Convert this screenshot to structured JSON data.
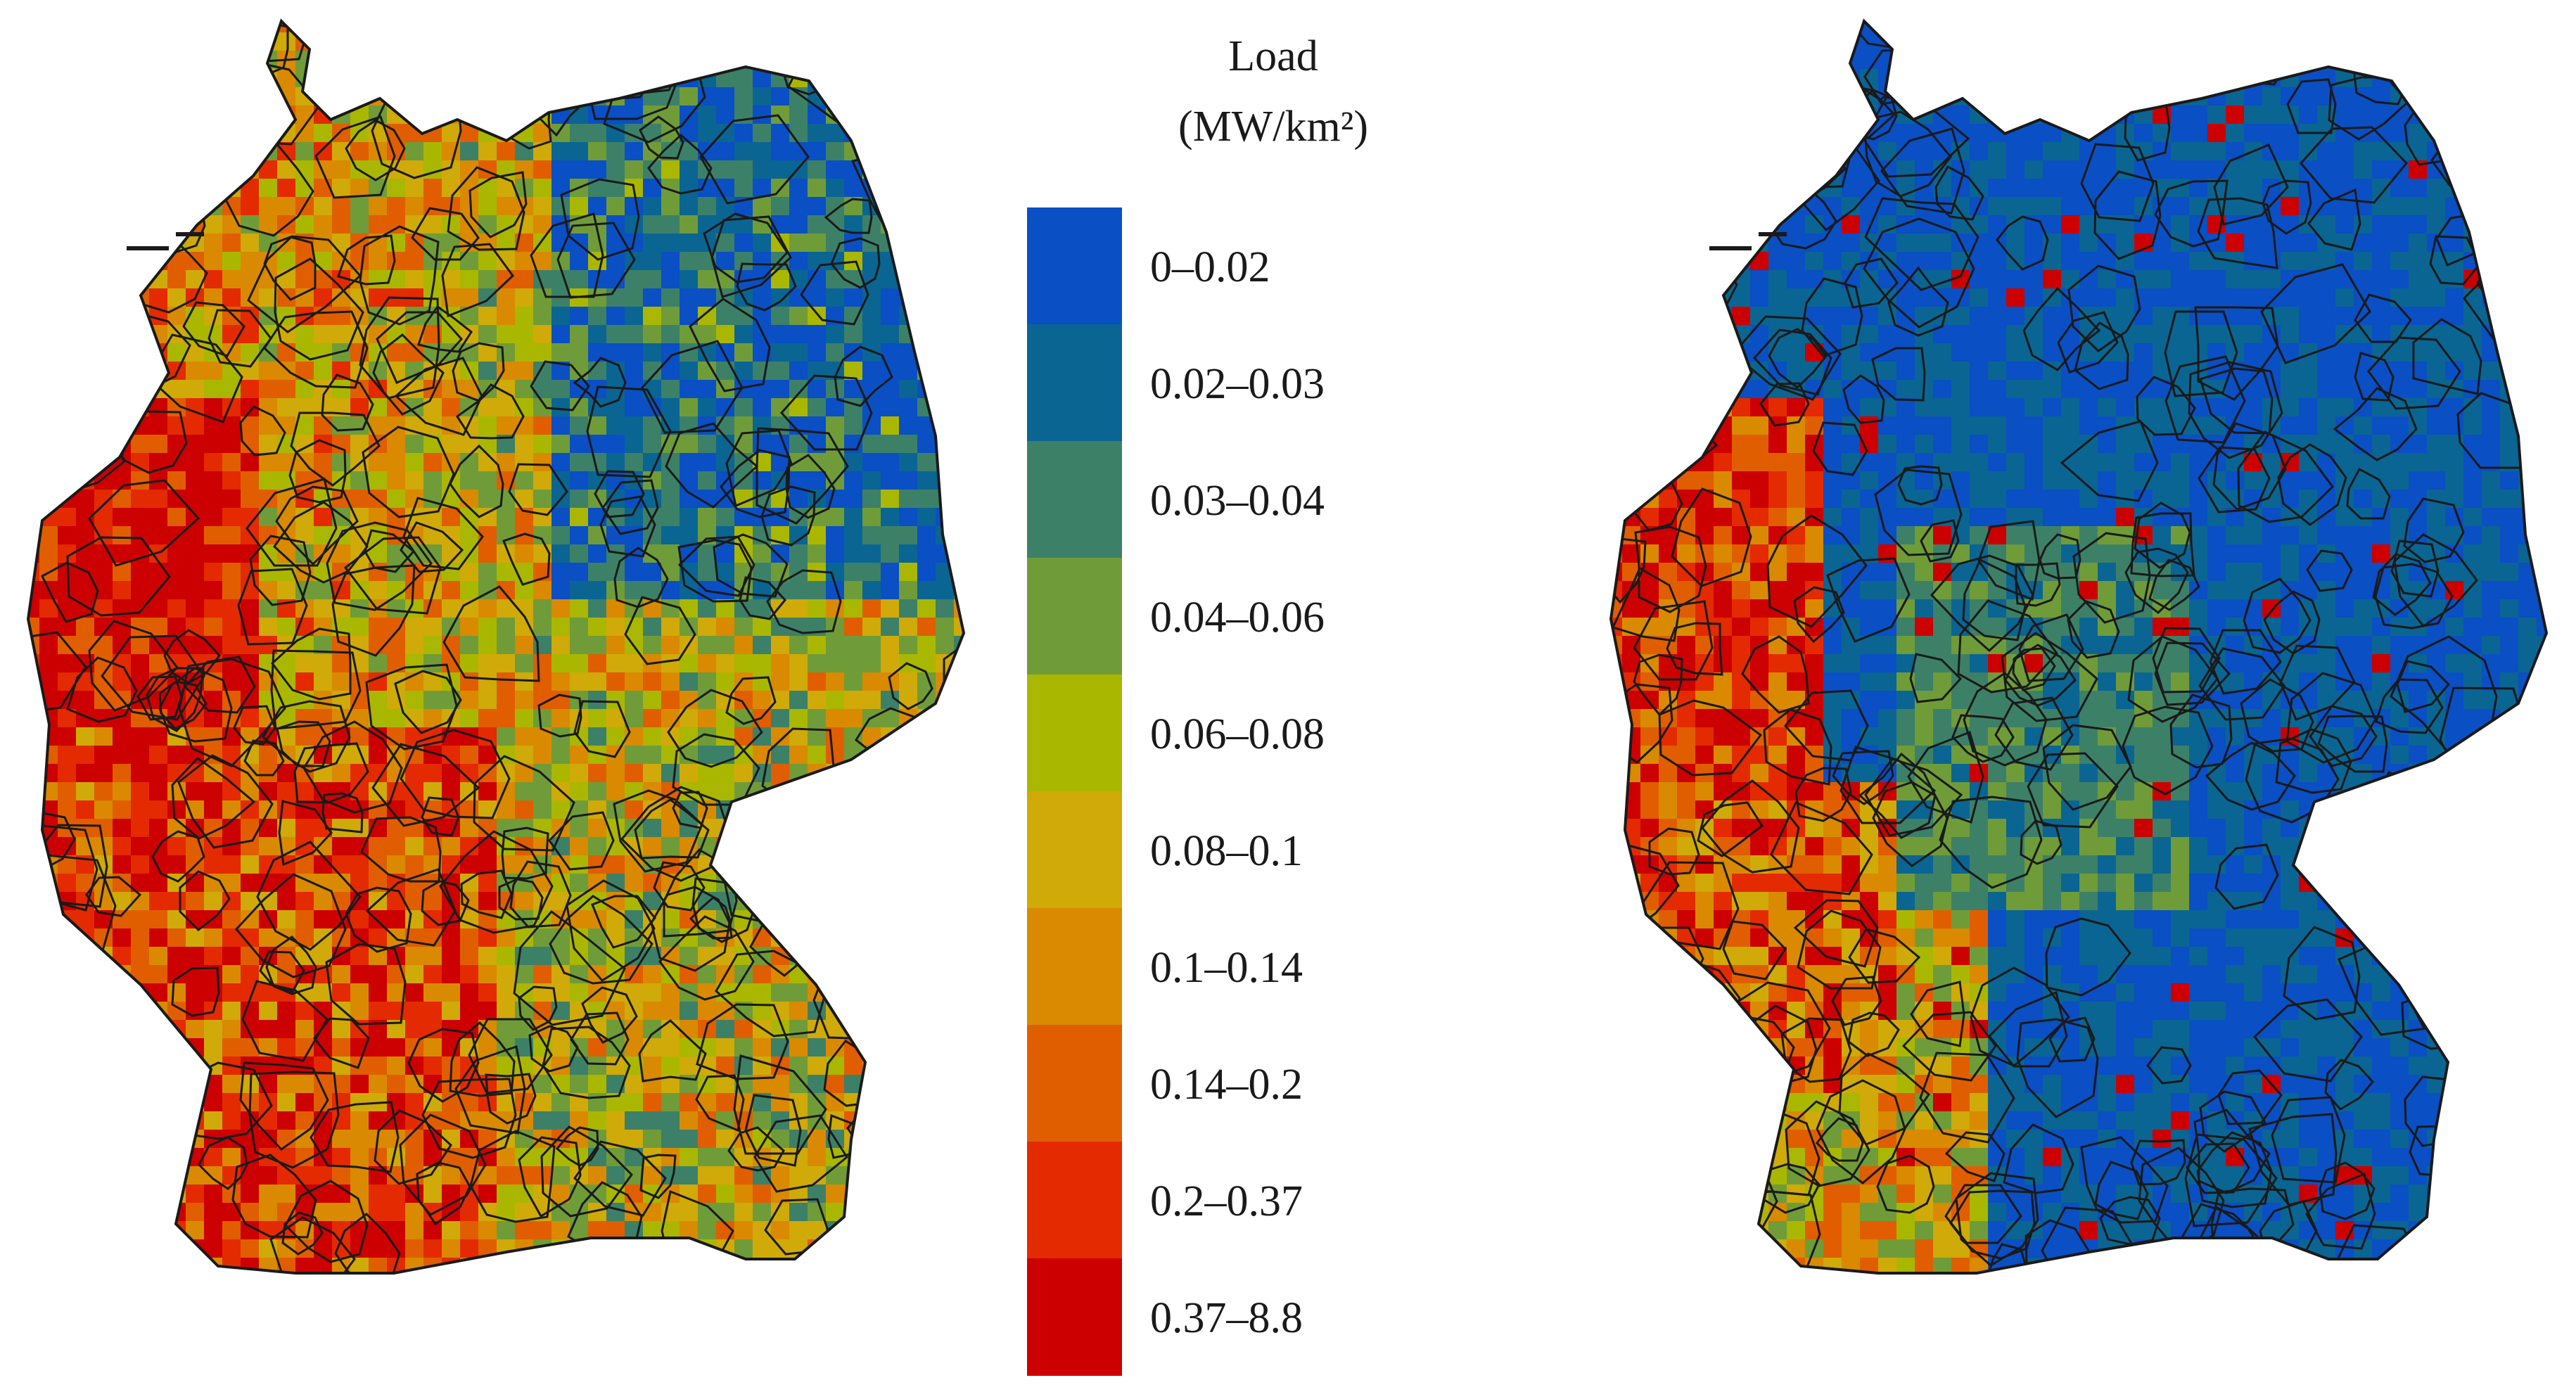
{
  "legend": {
    "title": "Load",
    "unit": "(MW/km²)",
    "classes": [
      {
        "label": "0–0.02",
        "color": "#0a4fc4"
      },
      {
        "label": "0.02–0.03",
        "color": "#0a6592"
      },
      {
        "label": "0.03–0.04",
        "color": "#3d8068"
      },
      {
        "label": "0.04–0.06",
        "color": "#6f9c39"
      },
      {
        "label": "0.06–0.08",
        "color": "#aab700"
      },
      {
        "label": "0.08–0.1",
        "color": "#cfaa08"
      },
      {
        "label": "0.1–0.14",
        "color": "#d98a00"
      },
      {
        "label": "0.14–0.2",
        "color": "#e05e00"
      },
      {
        "label": "0.2–0.37",
        "color": "#e42a00"
      },
      {
        "label": "0.37–8.8",
        "color": "#cc0000"
      }
    ]
  },
  "maps": [
    {
      "name": "left-map",
      "dominant": "mixed high load, dense red in west and south"
    },
    {
      "name": "right-map",
      "dominant": "predominantly low load blue, red in west and cities"
    }
  ],
  "style": {
    "district_border": "#1a1a1a",
    "background": "#ffffff"
  }
}
